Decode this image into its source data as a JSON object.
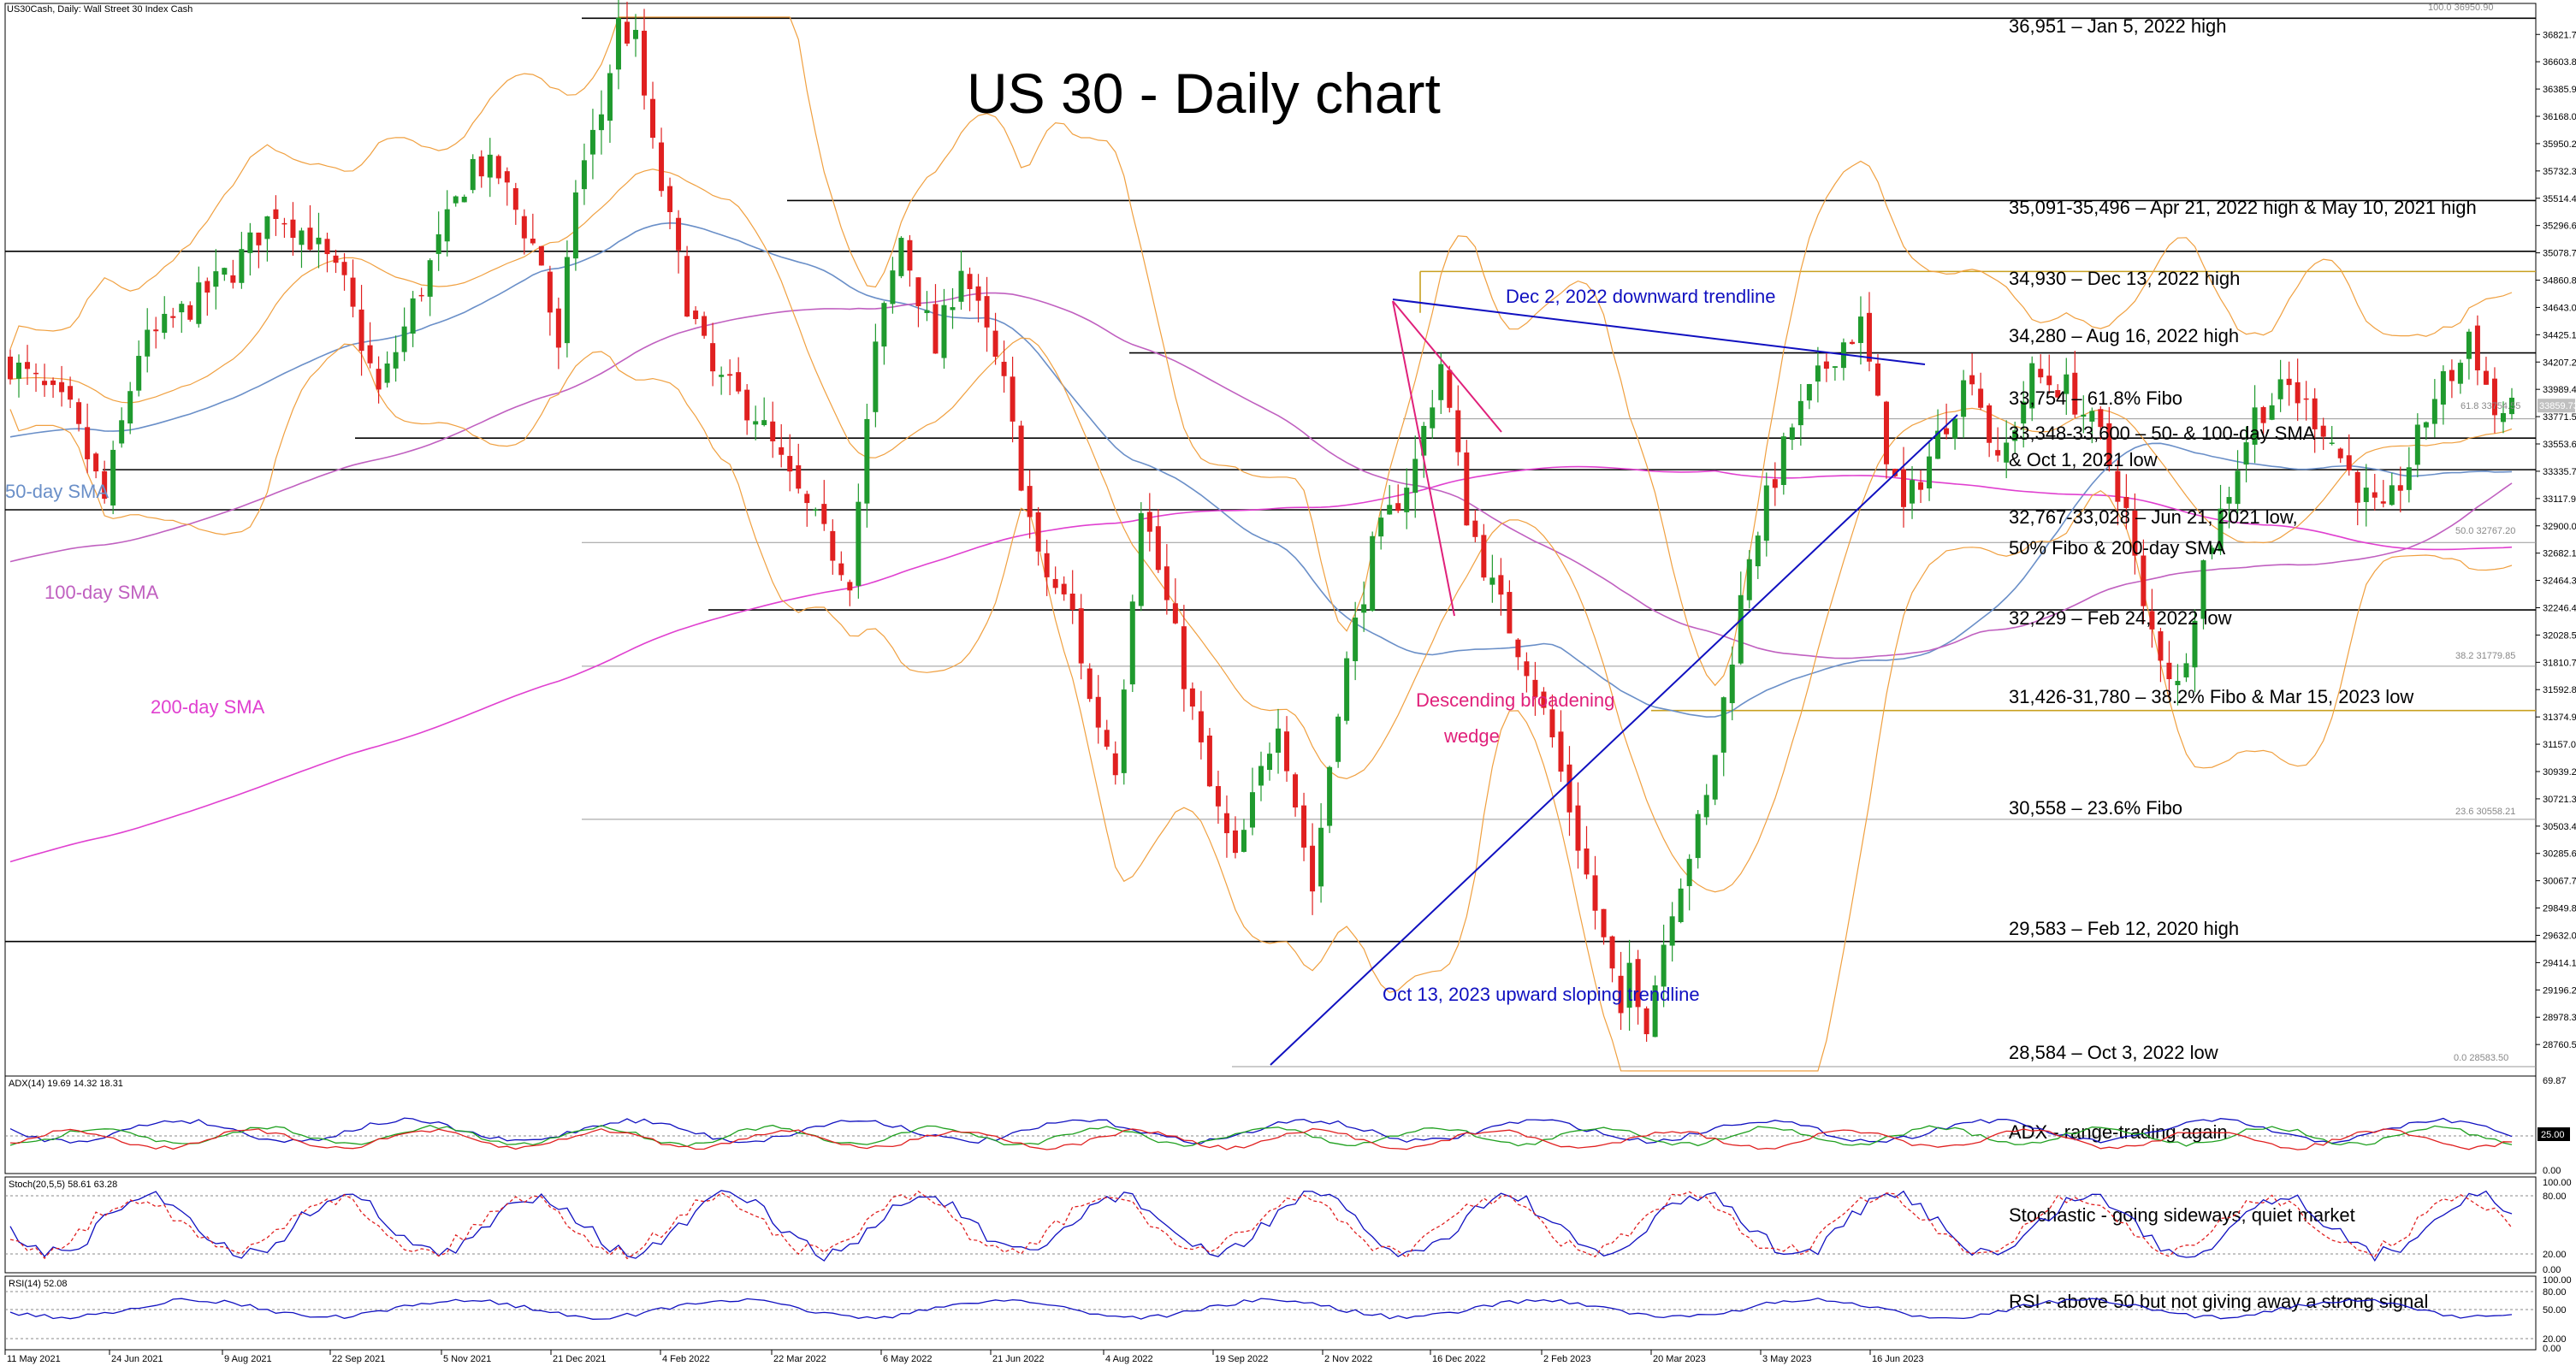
{
  "header": {
    "symbol": "US30Cash, Daily:  Wall Street 30 Index Cash",
    "chart_title": "US 30 - Daily chart"
  },
  "colors": {
    "background": "#ffffff",
    "bull_candle": "#1f9a2e",
    "bear_candle": "#e02020",
    "bollinger": "#f0a040",
    "sma50": "#6a8fc8",
    "sma100": "#c060c0",
    "sma200": "#e040d0",
    "trendline": "#1010c0",
    "wedge": "#e0207a",
    "level_line": "#000000",
    "fib_line": "#999999",
    "annotation_gold": "#c8a020"
  },
  "chart_data": {
    "type": "candlestick",
    "title": "US 30 - Daily chart",
    "ylim": [
      28550,
      36960
    ],
    "x_ticks": [
      "11 May 2021",
      "24 Jun 2021",
      "9 Aug 2021",
      "22 Sep 2021",
      "5 Nov 2021",
      "21 Dec 2021",
      "4 Feb 2022",
      "22 Mar 2022",
      "6 May 2022",
      "21 Jun 2022",
      "4 Aug 2022",
      "19 Sep 2022",
      "2 Nov 2022",
      "16 Dec 2022",
      "2 Feb 2023",
      "20 Mar 2023",
      "3 May 2023",
      "16 Jun 2023"
    ],
    "y_ticks": [
      "36821.74",
      "36603.84",
      "36385.97",
      "36168.08",
      "35950.23",
      "35732.36",
      "35514.49",
      "35296.62",
      "35078.75",
      "34860.88",
      "34643.01",
      "34425.14",
      "34207.27",
      "33989.40",
      "33771.53",
      "33553.66",
      "33335.79",
      "33117.92",
      "32900.05",
      "32682.18",
      "32464.31",
      "32246.44",
      "32028.57",
      "31810.70",
      "31592.83",
      "31374.96",
      "31157.09",
      "30939.22",
      "30721.35",
      "30503.48",
      "30285.61",
      "30067.74",
      "29849.87",
      "29632.00",
      "29414.13",
      "29196.26",
      "28978.39",
      "28760.52"
    ],
    "price_path": [
      [
        0,
        34200
      ],
      [
        7,
        33800
      ],
      [
        11,
        33100
      ],
      [
        15,
        34300
      ],
      [
        26,
        34950
      ],
      [
        31,
        35430
      ],
      [
        35,
        35200
      ],
      [
        39,
        34800
      ],
      [
        43,
        33950
      ],
      [
        47,
        34650
      ],
      [
        54,
        35800
      ],
      [
        57,
        35700
      ],
      [
        62,
        35000
      ],
      [
        64,
        34250
      ],
      [
        66,
        35600
      ],
      [
        69,
        36200
      ],
      [
        71,
        36900
      ],
      [
        73,
        36750
      ],
      [
        75,
        35900
      ],
      [
        79,
        34700
      ],
      [
        82,
        34100
      ],
      [
        87,
        33800
      ],
      [
        91,
        33250
      ],
      [
        95,
        32800
      ],
      [
        98,
        32500
      ],
      [
        101,
        34300
      ],
      [
        104,
        35200
      ],
      [
        108,
        34300
      ],
      [
        111,
        35000
      ],
      [
        116,
        34000
      ],
      [
        120,
        32600
      ],
      [
        124,
        32200
      ],
      [
        126,
        31500
      ],
      [
        129,
        31000
      ],
      [
        132,
        33100
      ],
      [
        136,
        32000
      ],
      [
        140,
        30800
      ],
      [
        143,
        30200
      ],
      [
        148,
        31400
      ],
      [
        150,
        30700
      ],
      [
        152,
        30000
      ],
      [
        155,
        31500
      ],
      [
        159,
        32700
      ],
      [
        164,
        33400
      ],
      [
        167,
        34200
      ],
      [
        170,
        33000
      ],
      [
        173,
        32400
      ],
      [
        177,
        31800
      ],
      [
        180,
        31200
      ],
      [
        184,
        30100
      ],
      [
        187,
        29300
      ],
      [
        188,
        28900
      ],
      [
        189,
        29400
      ],
      [
        191,
        28950
      ],
      [
        194,
        29900
      ],
      [
        198,
        30700
      ],
      [
        203,
        32700
      ],
      [
        208,
        33700
      ],
      [
        213,
        34300
      ],
      [
        216,
        34500
      ],
      [
        219,
        33500
      ],
      [
        221,
        33000
      ],
      [
        226,
        33750
      ],
      [
        229,
        34150
      ],
      [
        232,
        33350
      ],
      [
        236,
        34100
      ],
      [
        240,
        34000
      ],
      [
        244,
        33600
      ],
      [
        247,
        33000
      ],
      [
        249,
        32200
      ],
      [
        251,
        31900
      ],
      [
        253,
        31600
      ],
      [
        256,
        32600
      ],
      [
        262,
        33800
      ],
      [
        266,
        34000
      ],
      [
        270,
        33700
      ],
      [
        274,
        33200
      ],
      [
        277,
        32950
      ],
      [
        280,
        33400
      ],
      [
        283,
        33950
      ],
      [
        286,
        34200
      ],
      [
        287,
        34450
      ],
      [
        290,
        33800
      ],
      [
        292,
        33800
      ]
    ],
    "annotations": [
      {
        "price": 36951,
        "label": "36,951 – Jan 5, 2022 high",
        "color": "level_line"
      },
      {
        "price": 35496,
        "label": "35,091-35,496 – Apr 21, 2022 high & May 10, 2021 high",
        "color": "level_line"
      },
      {
        "price": 35091,
        "label": "",
        "color": "level_line"
      },
      {
        "price": 34930,
        "label": "34,930 – Dec 13, 2022 high",
        "color": "annotation_gold"
      },
      {
        "price": 34280,
        "label": "34,280 – Aug 16, 2022 high",
        "color": "level_line"
      },
      {
        "price": 33754,
        "label": "33,754 – 61.8% Fibo",
        "color": "fib_line"
      },
      {
        "price": 33600,
        "label": "33,348-33,600 – 50- & 100-day SMA",
        "color": "level_line"
      },
      {
        "price": 33348,
        "label": "& Oct 1, 2021 low",
        "color": "level_line"
      },
      {
        "price": 33028,
        "label": "32,767-33,028 – Jun 21, 2021 low,",
        "color": "level_line"
      },
      {
        "price": 32767,
        "label": "50% Fibo & 200-day SMA",
        "color": "fib_line"
      },
      {
        "price": 32229,
        "label": "32,229 – Feb 24, 2022 low",
        "color": "level_line"
      },
      {
        "price": 31780,
        "label": "",
        "color": "fib_line"
      },
      {
        "price": 31426,
        "label": "31,426-31,780 – 38.2% Fibo & Mar 15, 2023 low",
        "color": "annotation_gold"
      },
      {
        "price": 30558,
        "label": "30,558 – 23.6% Fibo",
        "color": "fib_line"
      },
      {
        "price": 29583,
        "label": "29,583 – Feb 12, 2020 high",
        "color": "level_line"
      },
      {
        "price": 28584,
        "label": "28,584 – Oct 3, 2022 low",
        "color": "fib_line"
      }
    ],
    "fib_labels": [
      "100.0 36950.90",
      "61.8 33754.55",
      "50.0 32767.20",
      "38.2 31779.85",
      "23.6 30558.21",
      "0.0 28583.50"
    ],
    "price_tag": "33859.73",
    "sma_labels": [
      "50-day SMA",
      "100-day SMA",
      "200-day SMA"
    ],
    "trendline_labels": [
      "Dec 2, 2022 downward trendline",
      "Oct 13, 2023 upward sloping trendline"
    ],
    "pattern_labels": [
      "Descending broadening",
      "wedge"
    ],
    "indicators": [
      {
        "name": "ADX",
        "header": "ADX(14) 19.69 14.32 18.31",
        "ticks": [
          "69.87",
          "25.00",
          "0.00"
        ],
        "comment": "ADX - range-trading again"
      },
      {
        "name": "Stochastic",
        "header": "Stoch(20,5,5) 58.61 63.28",
        "ticks": [
          "100.00",
          "80.00",
          "20.00",
          "0.00"
        ],
        "comment": "Stochastic - going sideways, quiet market"
      },
      {
        "name": "RSI",
        "header": "RSI(14) 52.08",
        "ticks": [
          "100.00",
          "80.00",
          "50.00",
          "20.00",
          "0.00"
        ],
        "comment": "RSI - above 50 but not giving away a strong signal"
      }
    ]
  }
}
